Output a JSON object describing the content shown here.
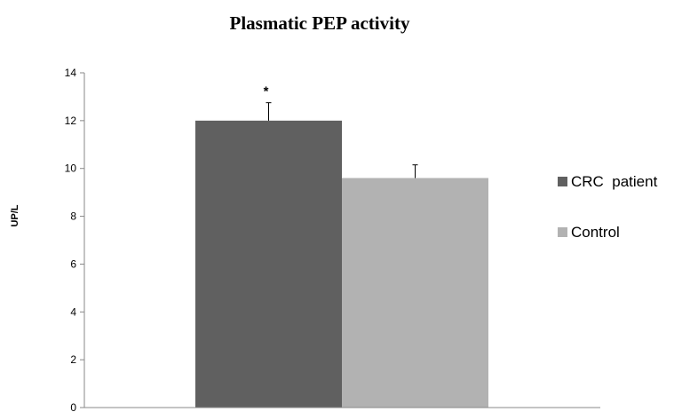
{
  "chart_data": {
    "type": "bar",
    "title": "Plasmatic PEP activity",
    "xlabel": "",
    "ylabel": "UP/L",
    "ylim": [
      0,
      14
    ],
    "yticks": [
      0,
      2,
      4,
      6,
      8,
      10,
      12,
      14
    ],
    "ytick_labels": [
      "0",
      "2",
      "4",
      "6",
      "8",
      "10",
      "12",
      "14"
    ],
    "grid": false,
    "legend_position": "right",
    "series": [
      {
        "name": "CRC  patient",
        "value": 12.0,
        "error": 0.75,
        "color": "#606060",
        "annotation": "*"
      },
      {
        "name": "Control",
        "value": 9.6,
        "error": 0.55,
        "color": "#b2b2b2",
        "annotation": ""
      }
    ]
  }
}
